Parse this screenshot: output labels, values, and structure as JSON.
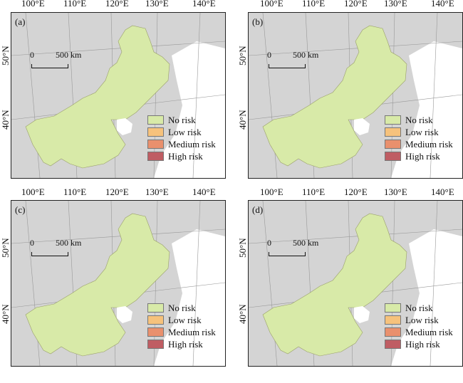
{
  "top_axis_labels": [
    "100°E",
    "110°E",
    "120°E",
    "130°E",
    "140°E"
  ],
  "mid_axis_labels": [
    "100°E",
    "110°E",
    "120°E",
    "130°E",
    "140°E"
  ],
  "lat_labels": [
    "50°N",
    "40°N"
  ],
  "scale_bar": {
    "zero": "0",
    "distance": "500 km"
  },
  "legend": [
    {
      "label": "No risk",
      "color": "#d8eaa8"
    },
    {
      "label": "Low risk",
      "color": "#f6c27c"
    },
    {
      "label": "Medium risk",
      "color": "#e9906d"
    },
    {
      "label": "High risk",
      "color": "#bf5d63"
    }
  ],
  "panels": [
    {
      "label": "(a)"
    },
    {
      "label": "(b)"
    },
    {
      "label": "(c)"
    },
    {
      "label": "(d)"
    }
  ],
  "colors": {
    "background_land": "#d2d2d2",
    "sea": "#ffffff",
    "region": "#d8eaa8"
  }
}
